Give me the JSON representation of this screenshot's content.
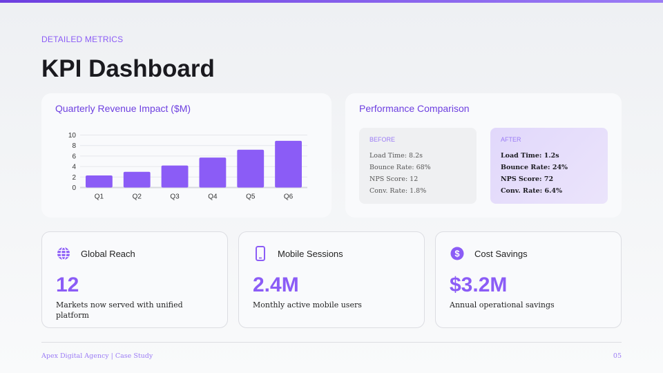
{
  "eyebrow": "DETAILED METRICS",
  "title": "KPI Dashboard",
  "chart_card": {
    "title": "Quarterly Revenue Impact ($M)"
  },
  "chart_data": {
    "type": "bar",
    "title": "Quarterly Revenue Impact ($M)",
    "categories": [
      "Q1",
      "Q2",
      "Q3",
      "Q4",
      "Q5",
      "Q6"
    ],
    "values": [
      2.3,
      3.0,
      4.2,
      5.7,
      7.2,
      8.9
    ],
    "ylim": [
      0,
      10
    ],
    "yticks": [
      0,
      2,
      4,
      6,
      8,
      10
    ],
    "grid": true,
    "color": "#8b5cf6"
  },
  "comparison": {
    "title": "Performance Comparison",
    "before": {
      "label": "BEFORE",
      "rows": [
        "Load Time: 8.2s",
        "Bounce Rate: 68%",
        "NPS Score: 12",
        "Conv. Rate: 1.8%"
      ]
    },
    "after": {
      "label": "AFTER",
      "rows": [
        "Load Time: 1.2s",
        "Bounce Rate: 24%",
        "NPS Score: 72",
        "Conv. Rate: 6.4%"
      ]
    }
  },
  "kpis": [
    {
      "icon": "globe-icon",
      "title": "Global Reach",
      "value": "12",
      "desc": "Markets now served with unified platform"
    },
    {
      "icon": "mobile-icon",
      "title": "Mobile Sessions",
      "value": "2.4M",
      "desc": "Monthly active mobile users"
    },
    {
      "icon": "dollar-icon",
      "title": "Cost Savings",
      "value": "$3.2M",
      "desc": "Annual operational savings"
    }
  ],
  "footer": {
    "left": "Apex Digital Agency | Case Study",
    "page": "05"
  },
  "accent": "#8b5cf6"
}
